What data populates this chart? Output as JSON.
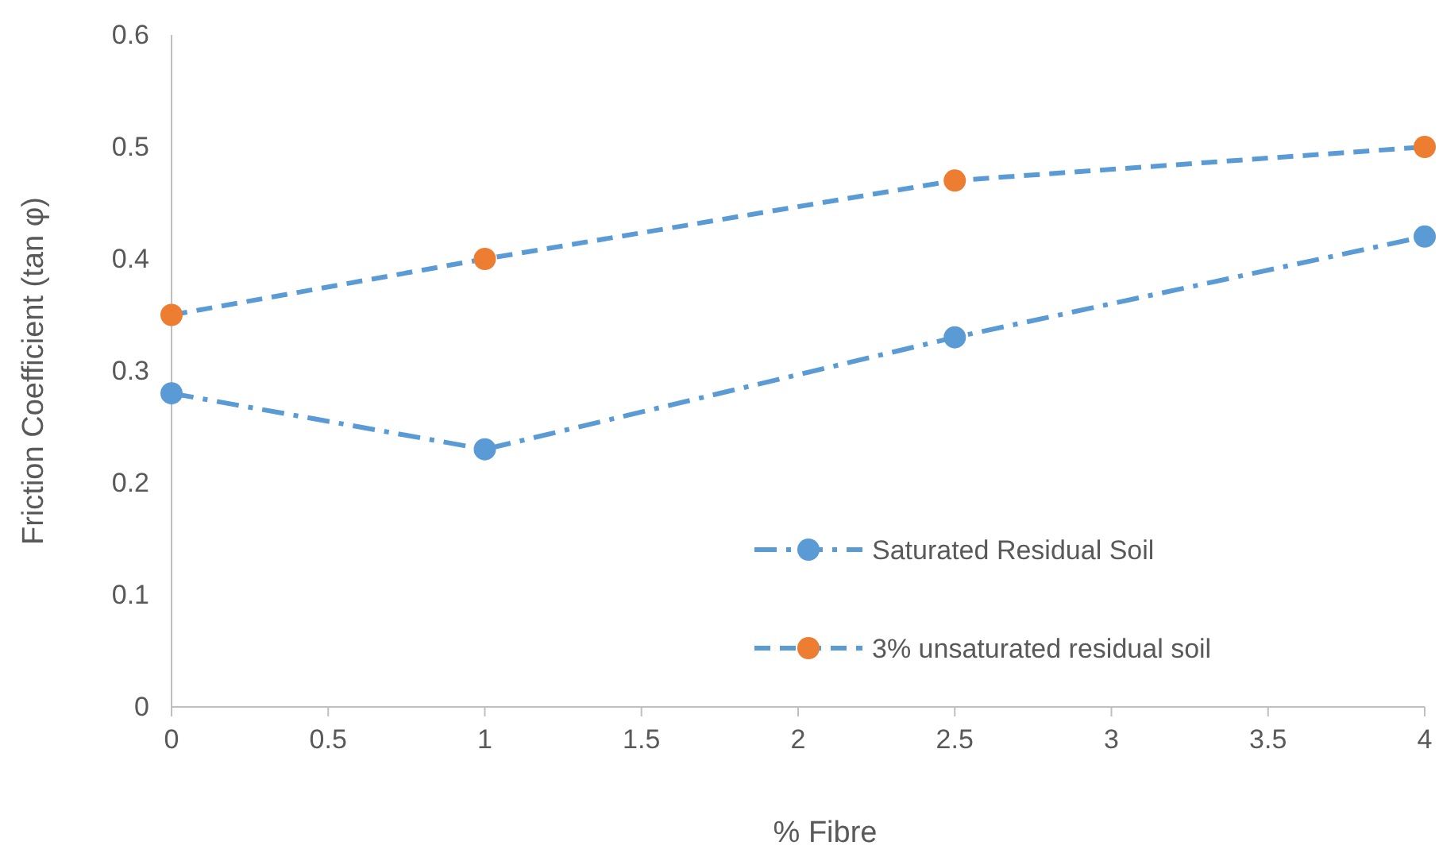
{
  "chart_data": {
    "type": "line",
    "xlabel": "% Fibre",
    "ylabel": "Friction Coefficient (tan φ)",
    "x": [
      0,
      1,
      2.5,
      4
    ],
    "xlim": [
      0,
      4
    ],
    "xticks": [
      0,
      0.5,
      1,
      1.5,
      2,
      2.5,
      3,
      3.5,
      4
    ],
    "ylim": [
      0,
      0.6
    ],
    "yticks": [
      0,
      0.1,
      0.2,
      0.3,
      0.4,
      0.5,
      0.6
    ],
    "grid": false,
    "legend": "bottom right",
    "marker": "circle",
    "series": [
      {
        "name": "Saturated Residual Soil",
        "color": "#5b9bd5",
        "colors": [
          "#5b9bd5",
          "#5b9bd5",
          "#5b9bd5",
          "#5b9bd5"
        ],
        "line_style": "dashdot",
        "values": [
          0.28,
          0.23,
          0.33,
          0.42
        ]
      },
      {
        "name": "3% unsaturated residual soil",
        "color": "#5b9bd5",
        "colors": [
          "#ed7d31",
          "#ed7d31",
          "#ed7d31",
          "#ed7d31"
        ],
        "line_style": "dashed",
        "values": [
          0.35,
          0.4,
          0.47,
          0.5
        ]
      }
    ]
  }
}
